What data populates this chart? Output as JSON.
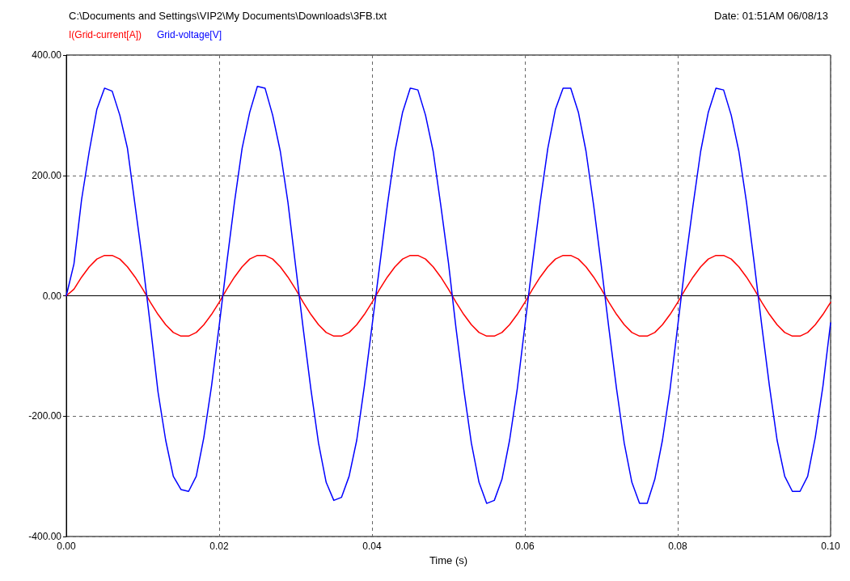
{
  "chart_data": {
    "type": "line",
    "title": "C:\\Documents and Settings\\VIP2\\My Documents\\Downloads\\3FB.txt",
    "subtitle": "Date: 01:51AM 06/08/13",
    "xlabel": "Time (s)",
    "x": [
      0,
      0.001,
      0.002,
      0.003,
      0.004,
      0.005,
      0.006,
      0.007,
      0.008,
      0.009,
      0.01,
      0.011,
      0.012,
      0.013,
      0.014,
      0.015,
      0.016,
      0.017,
      0.018,
      0.019,
      0.02,
      0.021,
      0.022,
      0.023,
      0.024,
      0.025,
      0.026,
      0.027,
      0.028,
      0.029,
      0.03,
      0.031,
      0.032,
      0.033,
      0.034,
      0.035,
      0.036,
      0.037,
      0.038,
      0.039,
      0.04,
      0.041,
      0.042,
      0.043,
      0.044,
      0.045,
      0.046,
      0.047,
      0.048,
      0.049,
      0.05,
      0.051,
      0.052,
      0.053,
      0.054,
      0.055,
      0.056,
      0.057,
      0.058,
      0.059,
      0.06,
      0.061,
      0.062,
      0.063,
      0.064,
      0.065,
      0.066,
      0.067,
      0.068,
      0.069,
      0.07,
      0.071,
      0.072,
      0.073,
      0.074,
      0.075,
      0.076,
      0.077,
      0.078,
      0.079,
      0.08,
      0.081,
      0.082,
      0.083,
      0.084,
      0.085,
      0.086,
      0.087,
      0.088,
      0.089,
      0.09,
      0.091,
      0.092,
      0.093,
      0.094,
      0.095,
      0.096,
      0.097,
      0.098,
      0.099,
      0.1
    ],
    "series": [
      {
        "name": "I(Grid-current[A])",
        "color": "#ff0000",
        "values": [
          0,
          11,
          31,
          48,
          61,
          67,
          67,
          61,
          48,
          31,
          11,
          -11,
          -31,
          -48,
          -61,
          -67,
          -67,
          -61,
          -48,
          -31,
          -11,
          11,
          31,
          48,
          61,
          67,
          67,
          61,
          48,
          31,
          11,
          -11,
          -31,
          -48,
          -61,
          -67,
          -67,
          -61,
          -48,
          -31,
          -11,
          11,
          31,
          48,
          61,
          67,
          67,
          61,
          48,
          31,
          11,
          -11,
          -31,
          -48,
          -61,
          -67,
          -67,
          -61,
          -48,
          -31,
          -11,
          11,
          31,
          48,
          61,
          67,
          67,
          61,
          48,
          31,
          11,
          -11,
          -31,
          -48,
          -61,
          -67,
          -67,
          -61,
          -48,
          -31,
          -11,
          11,
          31,
          48,
          61,
          67,
          67,
          61,
          48,
          31,
          11,
          -11,
          -31,
          -48,
          -61,
          -67,
          -67,
          -61,
          -48,
          -31,
          -11
        ]
      },
      {
        "name": "Grid-voltage[V]",
        "color": "#0000ff",
        "values": [
          0,
          53,
          160,
          240,
          310,
          345,
          340,
          300,
          245,
          150,
          55,
          -50,
          -160,
          -240,
          -300,
          -322,
          -325,
          -300,
          -235,
          -150,
          -50,
          55,
          155,
          245,
          305,
          348,
          345,
          300,
          240,
          155,
          50,
          -55,
          -155,
          -245,
          -310,
          -340,
          -335,
          -300,
          -240,
          -150,
          -50,
          50,
          150,
          240,
          305,
          345,
          342,
          300,
          240,
          150,
          55,
          -55,
          -155,
          -245,
          -310,
          -345,
          -340,
          -305,
          -240,
          -155,
          -50,
          55,
          155,
          245,
          310,
          345,
          345,
          305,
          240,
          150,
          50,
          -55,
          -155,
          -245,
          -310,
          -345,
          -345,
          -305,
          -240,
          -155,
          -50,
          55,
          150,
          240,
          305,
          345,
          342,
          300,
          240,
          155,
          55,
          -50,
          -150,
          -240,
          -300,
          -325,
          -325,
          -300,
          -235,
          -150,
          -45
        ]
      }
    ],
    "xlim": [
      0,
      0.1
    ],
    "xticks": [
      {
        "value": 0,
        "label": "0.00"
      },
      {
        "value": 0.02,
        "label": "0.02"
      },
      {
        "value": 0.04,
        "label": "0.04"
      },
      {
        "value": 0.06,
        "label": "0.06"
      },
      {
        "value": 0.08,
        "label": "0.08"
      },
      {
        "value": 0.1,
        "label": "0.10"
      }
    ],
    "ylim": [
      -400,
      400
    ],
    "yticks": [
      {
        "value": -400,
        "label": "-400.00"
      },
      {
        "value": -200,
        "label": "-200.00"
      },
      {
        "value": 0,
        "label": "0.00"
      },
      {
        "value": 200,
        "label": "200.00"
      },
      {
        "value": 400,
        "label": "400.00"
      }
    ],
    "grid": true,
    "legend": "top left",
    "marker": "none",
    "line_style": "solid"
  }
}
